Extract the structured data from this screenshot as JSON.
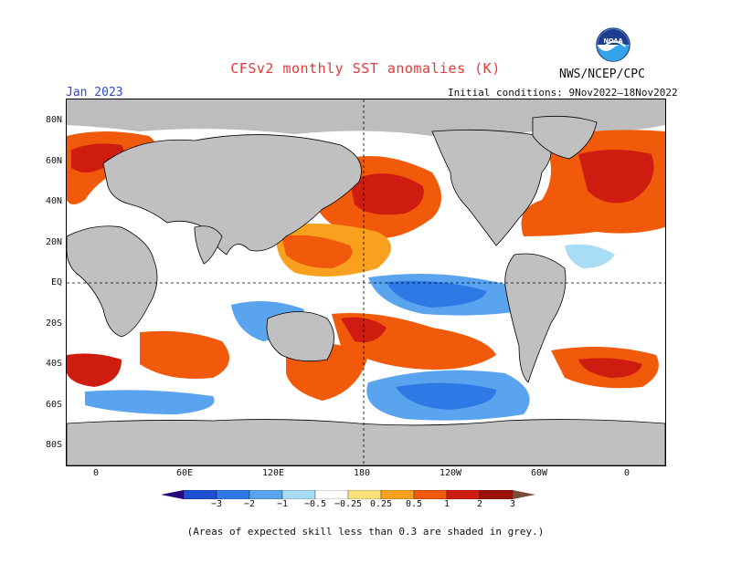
{
  "title": "CFSv2 monthly SST anomalies (K)",
  "month": "Jan 2023",
  "agency": "NWS/NCEP/CPC",
  "initial_conditions": "Initial conditions: 9Nov2022–18Nov2022",
  "logo_text": "NOAA",
  "footnote": "(Areas of expected skill less than 0.3 are shaded in grey.)",
  "lat_labels": [
    "80N",
    "60N",
    "40N",
    "20N",
    "EQ",
    "20S",
    "40S",
    "60S",
    "80S"
  ],
  "lon_labels": [
    "0",
    "60E",
    "120E",
    "180",
    "120W",
    "60W",
    "0"
  ],
  "colorbar": {
    "labels": [
      "−3",
      "−2",
      "−1",
      "−0.5",
      "−0.25",
      "0.25",
      "0.5",
      "1",
      "2",
      "3"
    ],
    "colors": [
      "#23087a",
      "#1f4fd1",
      "#2f79e6",
      "#5aa3ee",
      "#a9dcf5",
      "#ffffff",
      "#fde27c",
      "#f9a11f",
      "#f05a0a",
      "#cf1c10",
      "#9a1208",
      "#7a4a3a"
    ]
  },
  "colors": {
    "land": "#c0c0c0",
    "grey_skill": "#bdbdbd",
    "warm_strong": "#cf1c10",
    "warm": "#f05a0a",
    "warm_light": "#f9a11f",
    "cool": "#2f79e6",
    "cool_light": "#5aa3ee"
  }
}
